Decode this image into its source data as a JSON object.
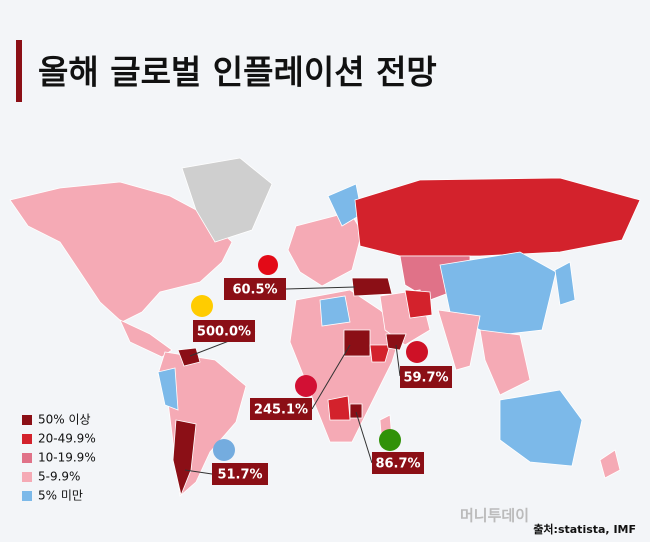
{
  "header": {
    "title": "올해 글로벌 인플레이션 전망"
  },
  "legend": {
    "items": [
      {
        "label": "50% 이상",
        "color": "#8b0f16"
      },
      {
        "label": "20-49.9%",
        "color": "#d3222c"
      },
      {
        "label": "10-19.9%",
        "color": "#e07288"
      },
      {
        "label": "5-9.9%",
        "color": "#f5aab5"
      },
      {
        "label": "5% 미만",
        "color": "#7cb9e9"
      }
    ]
  },
  "callouts": [
    "60.5%",
    "500.0%",
    "59.7%",
    "245.1%",
    "86.7%",
    "51.7%"
  ],
  "source": "출처:statista, IMF",
  "watermark": "머니투데이"
}
